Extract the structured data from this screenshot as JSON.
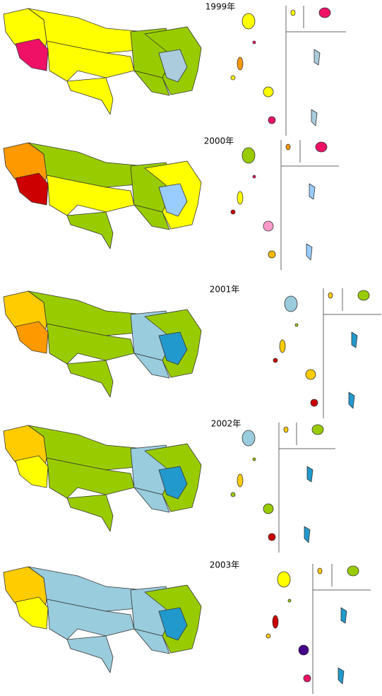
{
  "panels": [
    {
      "title": "1999年"
    },
    {
      "title": "2000年"
    },
    {
      "title": "2001年"
    },
    {
      "title": "2002年"
    },
    {
      "title": "2003年"
    }
  ]
}
